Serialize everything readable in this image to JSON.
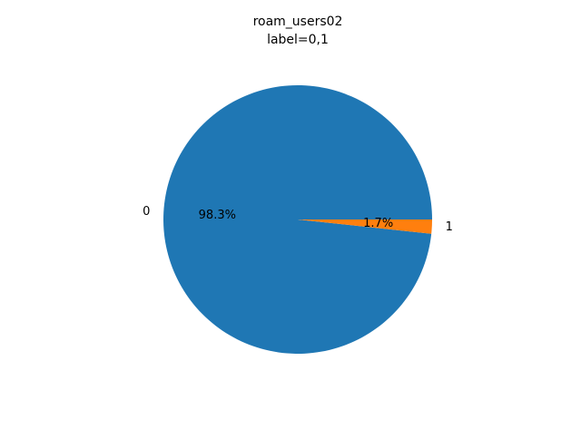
{
  "chart_data": {
    "type": "pie",
    "title": "roam_users02",
    "subtitle": "label=0,1",
    "categories": [
      "0",
      "1"
    ],
    "values": [
      98.3,
      1.7
    ],
    "percent_labels": [
      "98.3%",
      "1.7%"
    ],
    "colors": [
      "#1f77b4",
      "#ff7f0e"
    ],
    "start_angle_deg": 0,
    "direction": "counterclockwise"
  }
}
